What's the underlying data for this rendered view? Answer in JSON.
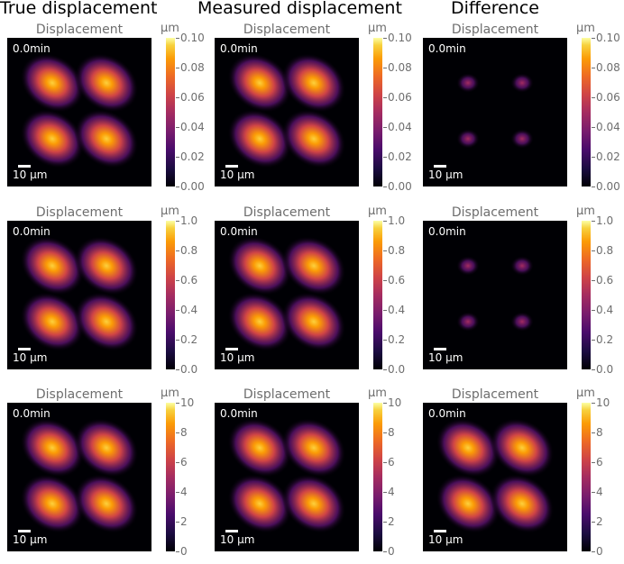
{
  "column_titles": [
    "True displacement",
    "Measured displacement",
    "Difference"
  ],
  "panel_title": "Displacement",
  "time_label": "0.0min",
  "scale_label": "10 µm",
  "colorbar_unit": "µm",
  "rows": [
    {
      "ticks": [
        "0.10",
        "0.08",
        "0.06",
        "0.04",
        "0.02",
        "0.00"
      ],
      "max": 0.1
    },
    {
      "ticks": [
        "1.0",
        "0.8",
        "0.6",
        "0.4",
        "0.2",
        "0.0"
      ],
      "max": 1.0
    },
    {
      "ticks": [
        "10",
        "8",
        "6",
        "4",
        "2",
        "0"
      ],
      "max": 10
    }
  ],
  "colors": {
    "background": "#000004",
    "hot": "#fb9b06",
    "mid": "#cf4446",
    "low": "#4a0c6b"
  }
}
